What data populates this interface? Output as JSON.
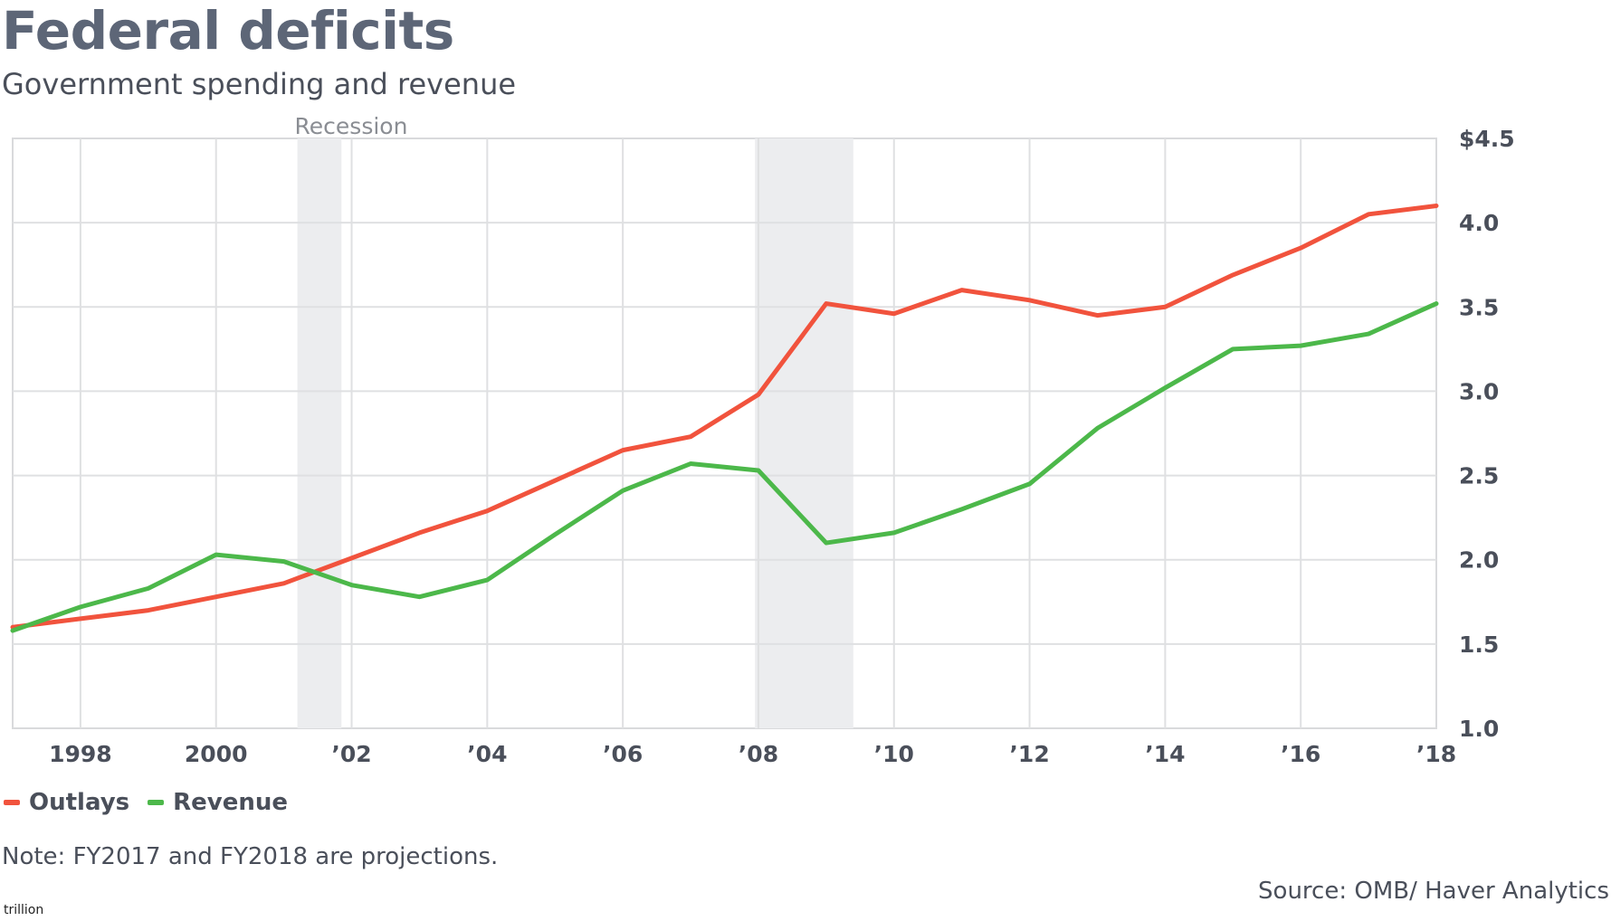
{
  "header": {
    "title": "Federal deficits",
    "subtitle": "Government spending and revenue"
  },
  "annotation": {
    "recession_label": "Recession"
  },
  "legend": [
    {
      "label": "Outlays",
      "color": "#f1533d"
    },
    {
      "label": "Revenue",
      "color": "#4cb84a"
    }
  ],
  "footer": {
    "note": "Note: FY2017 and FY2018 are projections.",
    "source": "Source: OMB/ Haver Analytics",
    "unit": "trillion"
  },
  "chart_data": {
    "type": "line",
    "x": [
      1997,
      1998,
      1999,
      2000,
      2001,
      2002,
      2003,
      2004,
      2005,
      2006,
      2007,
      2008,
      2009,
      2010,
      2011,
      2012,
      2013,
      2014,
      2015,
      2016,
      2017,
      2018
    ],
    "series": [
      {
        "name": "Outlays",
        "color": "#f1533d",
        "values": [
          1.6,
          1.65,
          1.7,
          1.78,
          1.86,
          2.01,
          2.16,
          2.29,
          2.47,
          2.65,
          2.73,
          2.98,
          3.52,
          3.46,
          3.6,
          3.54,
          3.45,
          3.5,
          3.69,
          3.85,
          4.05,
          4.1
        ]
      },
      {
        "name": "Revenue",
        "color": "#4cb84a",
        "values": [
          1.58,
          1.72,
          1.83,
          2.03,
          1.99,
          1.85,
          1.78,
          1.88,
          2.15,
          2.41,
          2.57,
          2.53,
          2.1,
          2.16,
          2.3,
          2.45,
          2.78,
          3.02,
          3.25,
          3.27,
          3.34,
          3.52
        ]
      }
    ],
    "x_tick_values": [
      1998,
      2000,
      2002,
      2004,
      2006,
      2008,
      2010,
      2012,
      2014,
      2016,
      2018
    ],
    "x_tick_labels": [
      "1998",
      "2000",
      "’02",
      "’04",
      "’06",
      "’08",
      "’10",
      "’12",
      "’14",
      "’16",
      "’18"
    ],
    "y_tick_values": [
      1.0,
      1.5,
      2.0,
      2.5,
      3.0,
      3.5,
      4.0,
      4.5
    ],
    "y_tick_labels": [
      "1.0",
      "1.5",
      "2.0",
      "2.5",
      "3.0",
      "3.5",
      "4.0",
      "$4.5"
    ],
    "xlim": [
      1997,
      2018
    ],
    "ylim": [
      1.0,
      4.5
    ],
    "recessions": [
      [
        2001.2,
        2001.85
      ],
      [
        2007.95,
        2009.4
      ]
    ],
    "grid": true,
    "legend_position": "bottom-left",
    "y_axis_side": "right"
  }
}
